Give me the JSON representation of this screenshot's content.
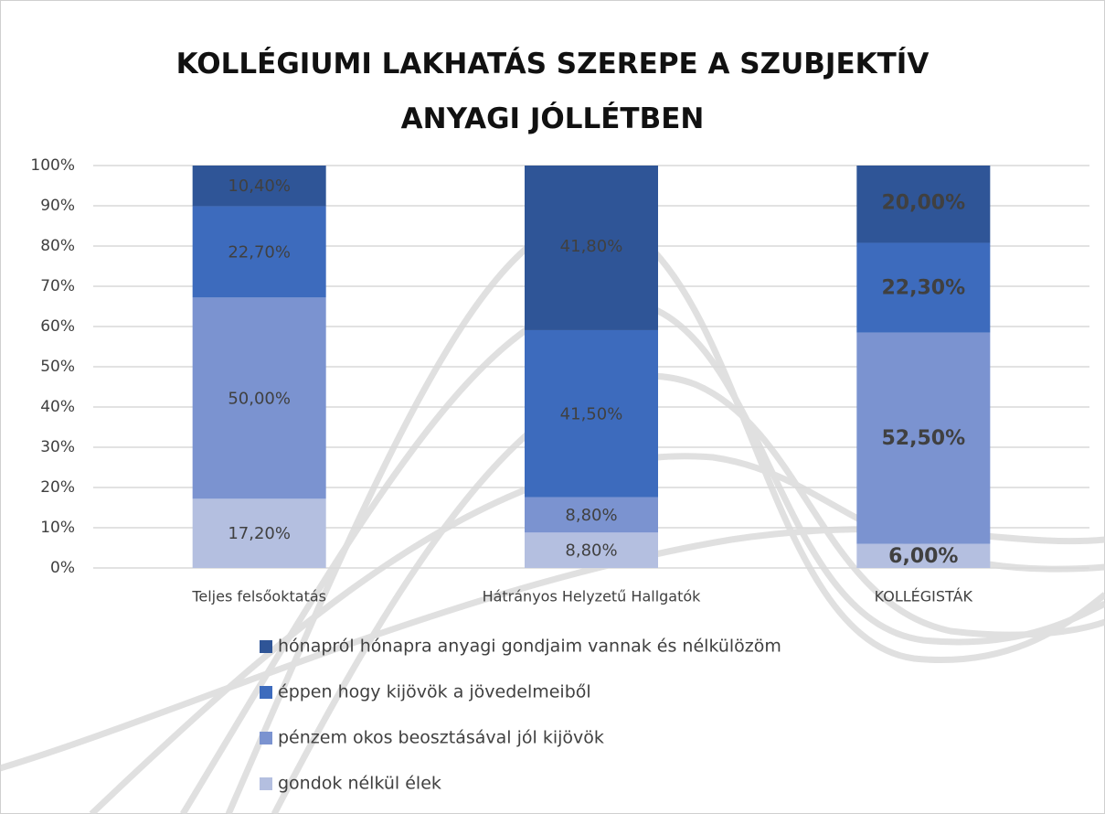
{
  "chart_data": {
    "type": "stacked_bar",
    "title": "KOLLÉGIUMI LAKHATÁS SZEREPE A SZUBJEKTÍV ANYAGI JÓLLÉTBEN",
    "categories": [
      "Teljes felsőoktatás",
      "Hátrányos Helyzetű Hallgatók",
      "KOLLÉGISTÁK"
    ],
    "label_bold": [
      false,
      false,
      true
    ],
    "series": [
      {
        "name": "gondok nélkül élek",
        "color": "#b4bfe0",
        "values": [
          17.2,
          8.8,
          6.0
        ],
        "value_labels": [
          "17,20%",
          "8,80%",
          "6,00%"
        ]
      },
      {
        "name": "pénzem okos beosztásával jól kijövök",
        "color": "#7b93d0",
        "values": [
          50.0,
          8.8,
          52.5
        ],
        "value_labels": [
          "50,00%",
          "8,80%",
          "52,50%"
        ]
      },
      {
        "name": "éppen hogy kijövök a jövedelmeiből",
        "color": "#3d6bbd",
        "values": [
          22.7,
          41.5,
          22.3
        ],
        "value_labels": [
          "22,70%",
          "41,50%",
          "22,30%"
        ]
      },
      {
        "name": "hónapról hónapra anyagi gondjaim vannak és nélkülözöm",
        "color": "#2f5597",
        "values": [
          10.4,
          41.8,
          20.0
        ],
        "value_labels": [
          "10,40%",
          "41,80%",
          "20,00%"
        ]
      }
    ],
    "ylim": [
      0,
      100
    ],
    "yticks": [
      {
        "value": 0,
        "label": "0%"
      },
      {
        "value": 10,
        "label": "10%"
      },
      {
        "value": 20,
        "label": "20%"
      },
      {
        "value": 30,
        "label": "30%"
      },
      {
        "value": 40,
        "label": "40%"
      },
      {
        "value": 50,
        "label": "50%"
      },
      {
        "value": 60,
        "label": "60%"
      },
      {
        "value": 70,
        "label": "70%"
      },
      {
        "value": 80,
        "label": "80%"
      },
      {
        "value": 90,
        "label": "90%"
      },
      {
        "value": 100,
        "label": "100%"
      }
    ],
    "grid": true
  }
}
